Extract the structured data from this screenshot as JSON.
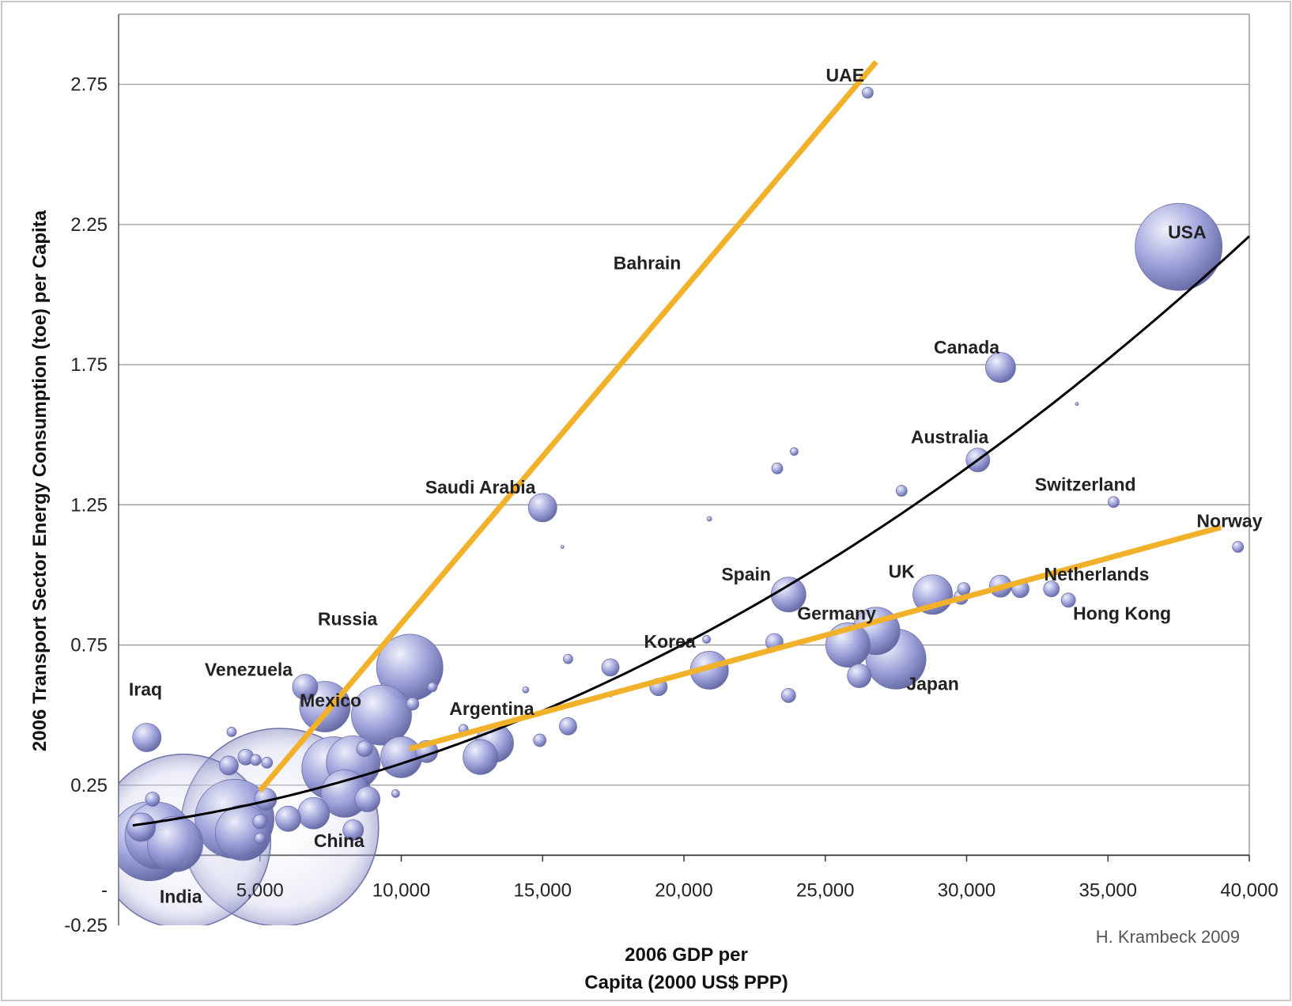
{
  "chart_data": {
    "type": "scatter",
    "subtype": "bubble",
    "title": "",
    "xlabel": [
      "2006 GDP per",
      "Capita (2000 US$ PPP)"
    ],
    "ylabel": "2006 Transport Sector Energy Consumption (toe) per Capita",
    "xlim": [
      0,
      40000
    ],
    "ylim": [
      -0.25,
      3.0
    ],
    "x_ticks": [
      5000,
      10000,
      15000,
      20000,
      25000,
      30000,
      35000,
      40000
    ],
    "x_tick_labels": [
      "5,000",
      "10,000",
      "15,000",
      "20,000",
      "25,000",
      "30,000",
      "35,000",
      "40,000"
    ],
    "y_ticks": [
      -0.25,
      0.25,
      0.75,
      1.25,
      1.75,
      2.25,
      2.75
    ],
    "y_tick_labels": [
      "-0.25",
      "0.25",
      "0.75",
      "1.25",
      "1.75",
      "2.25",
      "2.75"
    ],
    "extra_y_tick_label": "-",
    "grid": "horizontal",
    "credit": "H. Krambeck 2009",
    "colors": {
      "bubble": "#9a9ed8",
      "bubble_light": "#eef0fb",
      "bubble_dark": "#5a5f9e",
      "trend": "#000000",
      "highlight": "#f2b12a",
      "grid": "#9a9a9a"
    },
    "series": [
      {
        "kind": "bubble",
        "points": [
          {
            "label": "India",
            "x": 2300,
            "y": 0.05,
            "r": 110
          },
          {
            "label": "",
            "x": 1100,
            "y": 0.05,
            "r": 50
          },
          {
            "label": "",
            "x": 1400,
            "y": 0.07,
            "r": 42
          },
          {
            "label": "",
            "x": 2000,
            "y": 0.04,
            "r": 35
          },
          {
            "label": "",
            "x": 800,
            "y": 0.1,
            "r": 18
          },
          {
            "label": "China",
            "x": 5700,
            "y": 0.1,
            "r": 125
          },
          {
            "label": "",
            "x": 4100,
            "y": 0.13,
            "r": 50
          },
          {
            "label": "",
            "x": 4400,
            "y": 0.08,
            "r": 35
          },
          {
            "label": "Iraq",
            "x": 1000,
            "y": 0.42,
            "r": 18
          },
          {
            "label": "",
            "x": 1200,
            "y": 0.2,
            "r": 9
          },
          {
            "label": "",
            "x": 3900,
            "y": 0.32,
            "r": 12
          },
          {
            "label": "",
            "x": 4500,
            "y": 0.35,
            "r": 10
          },
          {
            "label": "",
            "x": 5000,
            "y": 0.12,
            "r": 9
          },
          {
            "label": "",
            "x": 5000,
            "y": 0.06,
            "r": 7
          },
          {
            "label": "",
            "x": 4850,
            "y": 0.34,
            "r": 7
          },
          {
            "label": "",
            "x": 5250,
            "y": 0.33,
            "r": 7
          },
          {
            "label": "",
            "x": 5200,
            "y": 0.2,
            "r": 14
          },
          {
            "label": "",
            "x": 6000,
            "y": 0.13,
            "r": 16
          },
          {
            "label": "Venezuela",
            "x": 6600,
            "y": 0.6,
            "r": 16
          },
          {
            "label": "Mexico",
            "x": 7300,
            "y": 0.53,
            "r": 32
          },
          {
            "label": "",
            "x": 7600,
            "y": 0.31,
            "r": 40
          },
          {
            "label": "",
            "x": 8000,
            "y": 0.22,
            "r": 30
          },
          {
            "label": "",
            "x": 8300,
            "y": 0.33,
            "r": 34
          },
          {
            "label": "",
            "x": 8800,
            "y": 0.2,
            "r": 16
          },
          {
            "label": "",
            "x": 8700,
            "y": 0.38,
            "r": 10
          },
          {
            "label": "",
            "x": 8300,
            "y": 0.09,
            "r": 13
          },
          {
            "label": "",
            "x": 6900,
            "y": 0.15,
            "r": 20
          },
          {
            "label": "",
            "x": 4000,
            "y": 0.44,
            "r": 6
          },
          {
            "label": "",
            "x": 9300,
            "y": 0.5,
            "r": 38
          },
          {
            "label": "",
            "x": 10000,
            "y": 0.35,
            "r": 26
          },
          {
            "label": "Russia",
            "x": 10300,
            "y": 0.67,
            "r": 42
          },
          {
            "label": "",
            "x": 10400,
            "y": 0.54,
            "r": 8
          },
          {
            "label": "",
            "x": 10900,
            "y": 0.37,
            "r": 14
          },
          {
            "label": "",
            "x": 11100,
            "y": 0.6,
            "r": 6
          },
          {
            "label": "",
            "x": 9800,
            "y": 0.22,
            "r": 5
          },
          {
            "label": "Argentina",
            "x": 12800,
            "y": 0.35,
            "r": 22
          },
          {
            "label": "",
            "x": 13300,
            "y": 0.4,
            "r": 24
          },
          {
            "label": "",
            "x": 12200,
            "y": 0.45,
            "r": 6
          },
          {
            "label": "Saudi Arabia",
            "x": 15000,
            "y": 1.24,
            "r": 18
          },
          {
            "label": "",
            "x": 14900,
            "y": 0.41,
            "r": 8
          },
          {
            "label": "",
            "x": 15900,
            "y": 0.46,
            "r": 11
          },
          {
            "label": "",
            "x": 15900,
            "y": 0.7,
            "r": 6
          },
          {
            "label": "",
            "x": 14400,
            "y": 0.59,
            "r": 4
          },
          {
            "label": "",
            "x": 15700,
            "y": 1.1,
            "r": 2
          },
          {
            "label": "",
            "x": 17400,
            "y": 0.67,
            "r": 11
          },
          {
            "label": "",
            "x": 17400,
            "y": 0.57,
            "r": 2
          },
          {
            "label": "",
            "x": 19100,
            "y": 0.6,
            "r": 11
          },
          {
            "label": "Korea",
            "x": 20900,
            "y": 0.66,
            "r": 24
          },
          {
            "label": "",
            "x": 20800,
            "y": 0.77,
            "r": 5
          },
          {
            "label": "",
            "x": 20900,
            "y": 1.2,
            "r": 3
          },
          {
            "label": "",
            "x": 23200,
            "y": 0.76,
            "r": 11
          },
          {
            "label": "",
            "x": 23300,
            "y": 1.38,
            "r": 7
          },
          {
            "label": "",
            "x": 23900,
            "y": 1.44,
            "r": 5
          },
          {
            "label": "Spain",
            "x": 23700,
            "y": 0.93,
            "r": 22
          },
          {
            "label": "",
            "x": 23700,
            "y": 0.57,
            "r": 9
          },
          {
            "label": "Germany",
            "x": 25800,
            "y": 0.75,
            "r": 28
          },
          {
            "label": "",
            "x": 26800,
            "y": 0.8,
            "r": 30
          },
          {
            "label": "Japan",
            "x": 27500,
            "y": 0.7,
            "r": 38
          },
          {
            "label": "",
            "x": 26200,
            "y": 0.64,
            "r": 15
          },
          {
            "label": "UAE",
            "x": 26500,
            "y": 2.72,
            "r": 7
          },
          {
            "label": "",
            "x": 27700,
            "y": 1.3,
            "r": 7
          },
          {
            "label": "UK",
            "x": 28800,
            "y": 0.93,
            "r": 25
          },
          {
            "label": "",
            "x": 29800,
            "y": 0.92,
            "r": 9
          },
          {
            "label": "",
            "x": 29900,
            "y": 0.95,
            "r": 8
          },
          {
            "label": "Australia",
            "x": 30400,
            "y": 1.41,
            "r": 15
          },
          {
            "label": "Canada",
            "x": 31200,
            "y": 1.74,
            "r": 19
          },
          {
            "label": "",
            "x": 31200,
            "y": 0.96,
            "r": 14
          },
          {
            "label": "",
            "x": 31900,
            "y": 0.95,
            "r": 11
          },
          {
            "label": "Netherlands",
            "x": 33000,
            "y": 0.95,
            "r": 10
          },
          {
            "label": "Hong Kong",
            "x": 33600,
            "y": 0.91,
            "r": 9
          },
          {
            "label": "Switzerland",
            "x": 35200,
            "y": 1.26,
            "r": 7
          },
          {
            "label": "",
            "x": 33900,
            "y": 1.61,
            "r": 2
          },
          {
            "label": "USA",
            "x": 37500,
            "y": 2.17,
            "r": 55
          },
          {
            "label": "Norway",
            "x": 39600,
            "y": 1.1,
            "r": 7
          }
        ]
      }
    ],
    "trend_black": {
      "type": "quadratic",
      "a": 0.1,
      "b": 1.27e-05,
      "c": 1e-09
    },
    "trend_segments": [
      {
        "name": "",
        "x": [
          5000,
          26800
        ],
        "y": [
          0.23,
          2.83
        ]
      },
      {
        "name": "",
        "x": [
          10300,
          39000
        ],
        "y": [
          0.38,
          1.17
        ]
      }
    ],
    "labels": [
      {
        "text": "UAE",
        "x": 25700,
        "y": 2.76
      },
      {
        "text": "Bahrain",
        "x": 18700,
        "y": 2.09
      },
      {
        "text": "USA",
        "x": 37800,
        "y": 2.2
      },
      {
        "text": "Canada",
        "x": 30000,
        "y": 1.79
      },
      {
        "text": "Australia",
        "x": 29400,
        "y": 1.47
      },
      {
        "text": "Switzerland",
        "x": 34200,
        "y": 1.3
      },
      {
        "text": "Saudi Arabia",
        "x": 12800,
        "y": 1.29
      },
      {
        "text": "Norway",
        "x": 39300,
        "y": 1.17
      },
      {
        "text": "Spain",
        "x": 22200,
        "y": 0.98
      },
      {
        "text": "UK",
        "x": 27700,
        "y": 0.99
      },
      {
        "text": "Netherlands",
        "x": 34600,
        "y": 0.98
      },
      {
        "text": "Germany",
        "x": 25400,
        "y": 0.84
      },
      {
        "text": "Hong Kong",
        "x": 35500,
        "y": 0.84
      },
      {
        "text": "Russia",
        "x": 8100,
        "y": 0.82
      },
      {
        "text": "Korea",
        "x": 19500,
        "y": 0.74
      },
      {
        "text": "Venezuela",
        "x": 4600,
        "y": 0.64
      },
      {
        "text": "Mexico",
        "x": 7500,
        "y": 0.53
      },
      {
        "text": "Iraq",
        "x": 950,
        "y": 0.57
      },
      {
        "text": "Argentina",
        "x": 13200,
        "y": 0.5
      },
      {
        "text": "Japan",
        "x": 28800,
        "y": 0.59
      },
      {
        "text": "China",
        "x": 7800,
        "y": 0.03
      },
      {
        "text": "India",
        "x": 2200,
        "y": -0.17
      }
    ]
  }
}
